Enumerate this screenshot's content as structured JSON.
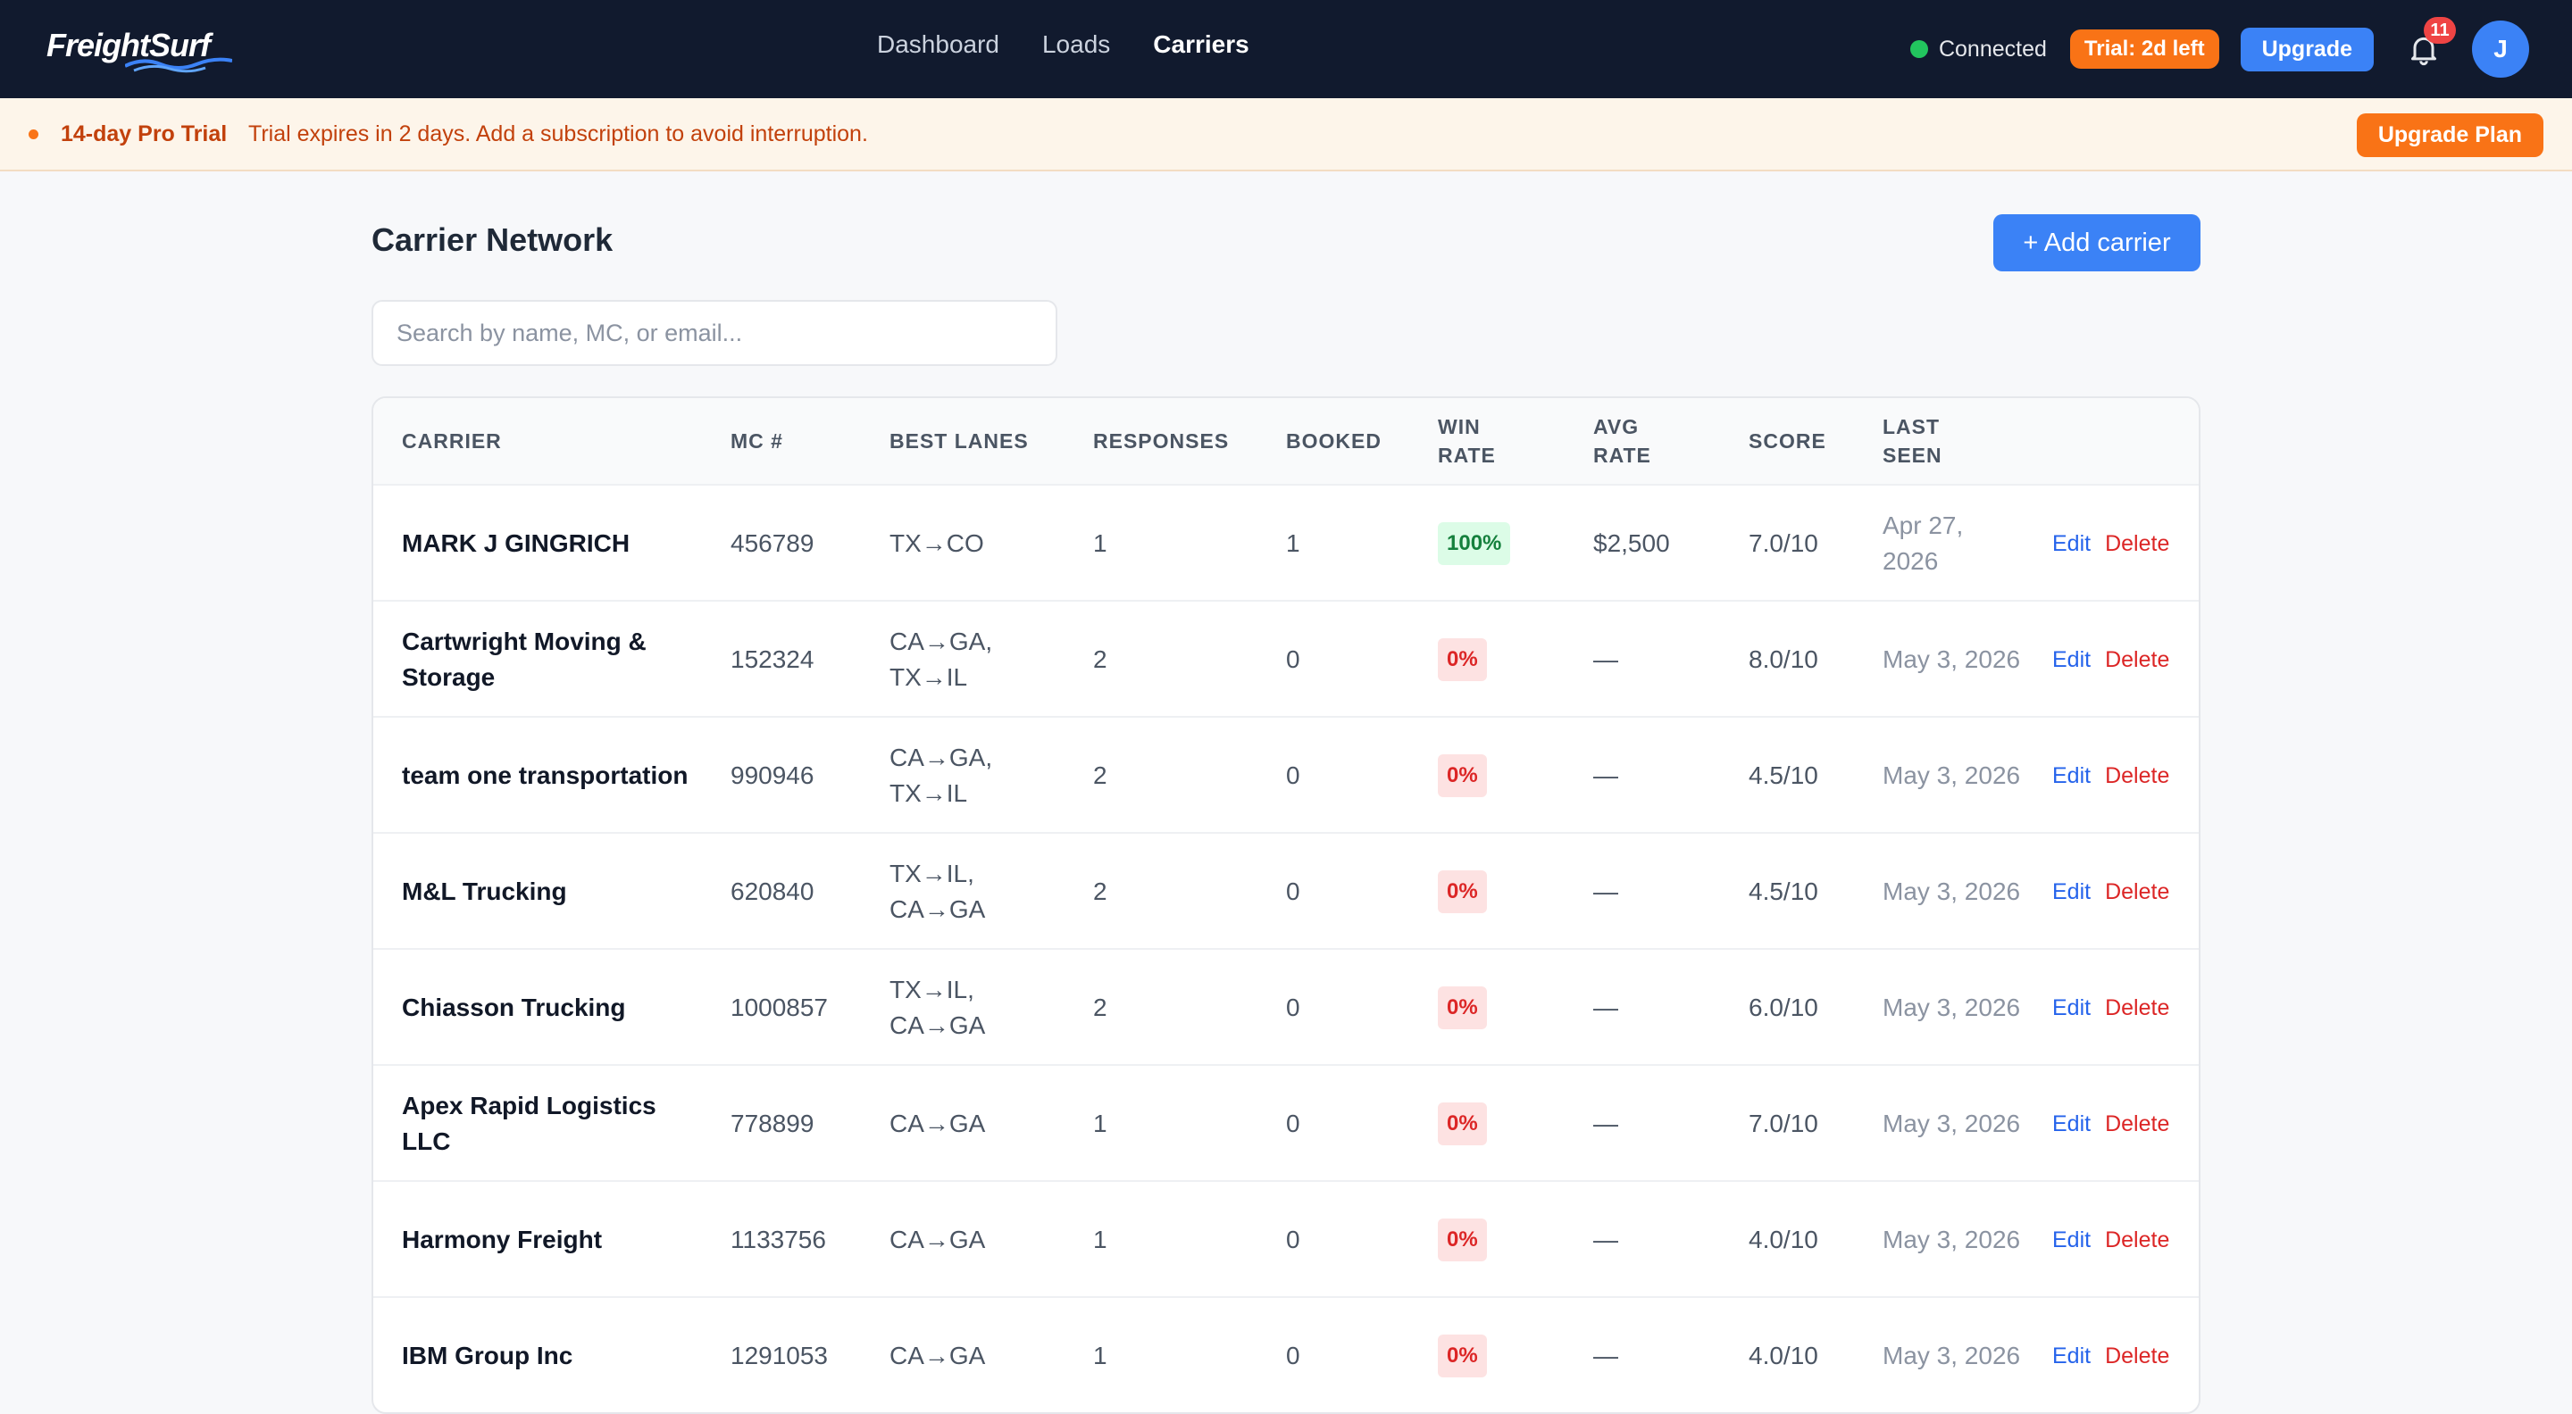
{
  "app": {
    "logo": "FreightSurf",
    "nav": [
      "Dashboard",
      "Loads",
      "Carriers"
    ],
    "active_nav": "Carriers",
    "connection_status": "Connected",
    "trial_pill": "Trial: 2d left",
    "upgrade_label": "Upgrade",
    "notification_count": "11",
    "avatar_initial": "J"
  },
  "banner": {
    "title": "14-day Pro Trial",
    "text": "Trial expires in 2 days. Add a subscription to avoid interruption.",
    "button": "Upgrade Plan"
  },
  "page": {
    "title": "Carrier Network",
    "add_button": "+ Add carrier",
    "search_placeholder": "Search by name, MC, or email..."
  },
  "table": {
    "headers": {
      "carrier": "CARRIER",
      "mc": "MC #",
      "lanes": "BEST LANES",
      "responses": "RESPONSES",
      "booked": "BOOKED",
      "win_rate": "WIN RATE",
      "avg_rate": "AVG RATE",
      "score": "SCORE",
      "last_seen": "LAST SEEN"
    },
    "edit_label": "Edit",
    "delete_label": "Delete",
    "rows": [
      {
        "carrier": "MARK J GINGRICH",
        "mc": "456789",
        "lanes": "TX→CO",
        "responses": "1",
        "booked": "1",
        "win_rate": "100%",
        "win": true,
        "avg_rate": "$2,500",
        "score": "7.0/10",
        "last_seen": "Apr 27, 2026"
      },
      {
        "carrier": "Cartwright Moving & Storage",
        "mc": "152324",
        "lanes": "CA→GA, TX→IL",
        "responses": "2",
        "booked": "0",
        "win_rate": "0%",
        "win": false,
        "avg_rate": "—",
        "score": "8.0/10",
        "last_seen": "May 3, 2026"
      },
      {
        "carrier": "team one transportation",
        "mc": "990946",
        "lanes": "CA→GA, TX→IL",
        "responses": "2",
        "booked": "0",
        "win_rate": "0%",
        "win": false,
        "avg_rate": "—",
        "score": "4.5/10",
        "last_seen": "May 3, 2026"
      },
      {
        "carrier": "M&L Trucking",
        "mc": "620840",
        "lanes": "TX→IL, CA→GA",
        "responses": "2",
        "booked": "0",
        "win_rate": "0%",
        "win": false,
        "avg_rate": "—",
        "score": "4.5/10",
        "last_seen": "May 3, 2026"
      },
      {
        "carrier": "Chiasson Trucking",
        "mc": "1000857",
        "lanes": "TX→IL, CA→GA",
        "responses": "2",
        "booked": "0",
        "win_rate": "0%",
        "win": false,
        "avg_rate": "—",
        "score": "6.0/10",
        "last_seen": "May 3, 2026"
      },
      {
        "carrier": "Apex Rapid Logistics LLC",
        "mc": "778899",
        "lanes": "CA→GA",
        "responses": "1",
        "booked": "0",
        "win_rate": "0%",
        "win": false,
        "avg_rate": "—",
        "score": "7.0/10",
        "last_seen": "May 3, 2026"
      },
      {
        "carrier": "Harmony Freight",
        "mc": "1133756",
        "lanes": "CA→GA",
        "responses": "1",
        "booked": "0",
        "win_rate": "0%",
        "win": false,
        "avg_rate": "—",
        "score": "4.0/10",
        "last_seen": "May 3, 2026"
      },
      {
        "carrier": "IBM Group Inc",
        "mc": "1291053",
        "lanes": "CA→GA",
        "responses": "1",
        "booked": "0",
        "win_rate": "0%",
        "win": false,
        "avg_rate": "—",
        "score": "4.0/10",
        "last_seen": "May 3, 2026"
      }
    ]
  },
  "colors": {
    "nav_bg": "#111a2e",
    "accent": "#3b82f6",
    "trial_orange": "#f97316",
    "win_green": "#15803d",
    "lose_red": "#dc2626"
  }
}
